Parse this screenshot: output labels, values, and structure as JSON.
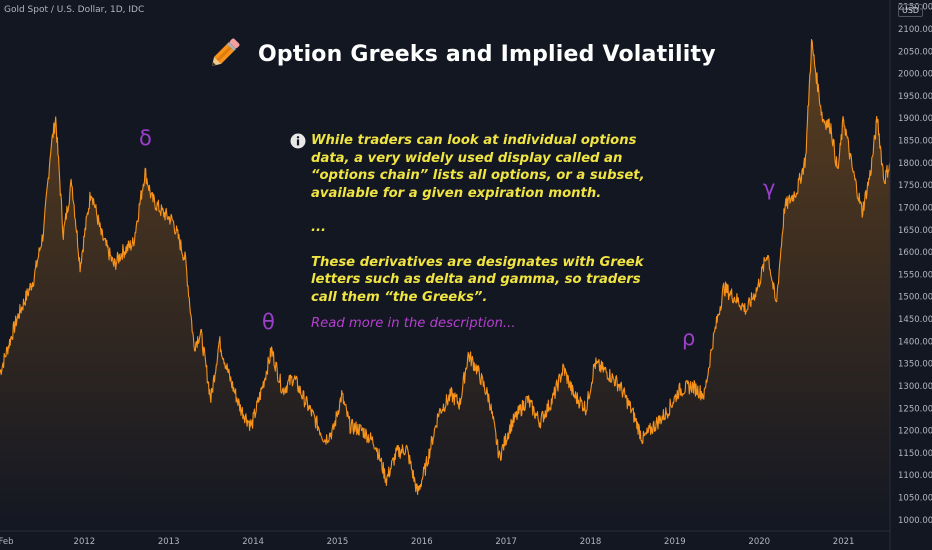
{
  "header": {
    "symbol": "Gold Spot / U.S. Dollar, 1D, IDC",
    "currency": "USD"
  },
  "annotation": {
    "title": "Option Greeks and Implied Volatility",
    "title_icon": "pencil-icon",
    "info_icon": "info-icon",
    "paragraph_1": "While traders can look at individual options data, a very widely used display called an “options chain” lists all options, or a subset, available for a given expiration month.",
    "ellipsis": "...",
    "paragraph_2": "These derivatives are designates with Greek letters such as delta and gamma, so traders call them “the Greeks”.",
    "read_more": "Read more in the description...",
    "text_color": "#f0e442",
    "link_color": "#b63fd0"
  },
  "greek_labels": {
    "delta": "δ",
    "theta": "θ",
    "rho": "ρ",
    "gamma": "γ",
    "color": "#9b3fcb"
  },
  "colors": {
    "background": "#131722",
    "line": "#f7931a",
    "axis_text": "#b2b5be"
  },
  "chart_data": {
    "type": "area",
    "title": "Gold Spot / U.S. Dollar, 1D, IDC",
    "x_ticks": [
      "Feb",
      "2012",
      "2013",
      "2014",
      "2015",
      "2016",
      "2017",
      "2018",
      "2019",
      "2020",
      "2021"
    ],
    "y_ticks": [
      "1000.00",
      "1050.00",
      "1100.00",
      "1150.00",
      "1200.00",
      "1250.00",
      "1300.00",
      "1350.00",
      "1400.00",
      "1450.00",
      "1500.00",
      "1550.00",
      "1600.00",
      "1650.00",
      "1700.00",
      "1750.00",
      "1800.00",
      "1850.00",
      "1900.00",
      "1950.00",
      "2000.00",
      "2050.00",
      "2100.00",
      "2150.00"
    ],
    "ylim": [
      975,
      2165
    ],
    "xlim": [
      2011.0,
      2021.55
    ],
    "grid": false,
    "series": [
      {
        "values_approx_monthly": [
          [
            2011.0,
            1330
          ],
          [
            2011.2,
            1450
          ],
          [
            2011.4,
            1540
          ],
          [
            2011.52,
            1650
          ],
          [
            2011.6,
            1830
          ],
          [
            2011.66,
            1900
          ],
          [
            2011.75,
            1640
          ],
          [
            2011.85,
            1760
          ],
          [
            2011.95,
            1570
          ],
          [
            2012.08,
            1740
          ],
          [
            2012.2,
            1640
          ],
          [
            2012.35,
            1570
          ],
          [
            2012.45,
            1600
          ],
          [
            2012.58,
            1620
          ],
          [
            2012.72,
            1780
          ],
          [
            2012.8,
            1720
          ],
          [
            2012.92,
            1690
          ],
          [
            2013.05,
            1670
          ],
          [
            2013.2,
            1580
          ],
          [
            2013.3,
            1390
          ],
          [
            2013.38,
            1420
          ],
          [
            2013.5,
            1270
          ],
          [
            2013.6,
            1400
          ],
          [
            2013.72,
            1320
          ],
          [
            2013.85,
            1250
          ],
          [
            2013.98,
            1210
          ],
          [
            2014.1,
            1290
          ],
          [
            2014.22,
            1380
          ],
          [
            2014.35,
            1290
          ],
          [
            2014.48,
            1320
          ],
          [
            2014.58,
            1280
          ],
          [
            2014.72,
            1230
          ],
          [
            2014.85,
            1180
          ],
          [
            2014.95,
            1200
          ],
          [
            2015.05,
            1280
          ],
          [
            2015.15,
            1210
          ],
          [
            2015.3,
            1200
          ],
          [
            2015.45,
            1170
          ],
          [
            2015.58,
            1090
          ],
          [
            2015.7,
            1150
          ],
          [
            2015.82,
            1160
          ],
          [
            2015.95,
            1060
          ],
          [
            2016.05,
            1120
          ],
          [
            2016.2,
            1240
          ],
          [
            2016.35,
            1280
          ],
          [
            2016.45,
            1260
          ],
          [
            2016.55,
            1370
          ],
          [
            2016.65,
            1340
          ],
          [
            2016.8,
            1270
          ],
          [
            2016.92,
            1140
          ],
          [
            2017.05,
            1210
          ],
          [
            2017.25,
            1270
          ],
          [
            2017.4,
            1220
          ],
          [
            2017.55,
            1270
          ],
          [
            2017.68,
            1340
          ],
          [
            2017.8,
            1280
          ],
          [
            2017.95,
            1250
          ],
          [
            2018.05,
            1350
          ],
          [
            2018.2,
            1330
          ],
          [
            2018.35,
            1300
          ],
          [
            2018.5,
            1240
          ],
          [
            2018.62,
            1180
          ],
          [
            2018.75,
            1210
          ],
          [
            2018.9,
            1240
          ],
          [
            2019.05,
            1290
          ],
          [
            2019.2,
            1300
          ],
          [
            2019.35,
            1280
          ],
          [
            2019.45,
            1400
          ],
          [
            2019.58,
            1520
          ],
          [
            2019.7,
            1500
          ],
          [
            2019.85,
            1470
          ],
          [
            2019.98,
            1520
          ],
          [
            2020.1,
            1600
          ],
          [
            2020.2,
            1480
          ],
          [
            2020.3,
            1700
          ],
          [
            2020.45,
            1740
          ],
          [
            2020.55,
            1810
          ],
          [
            2020.62,
            2070
          ],
          [
            2020.75,
            1900
          ],
          [
            2020.85,
            1880
          ],
          [
            2020.93,
            1780
          ],
          [
            2021.0,
            1900
          ],
          [
            2021.1,
            1790
          ],
          [
            2021.22,
            1690
          ],
          [
            2021.32,
            1780
          ],
          [
            2021.4,
            1900
          ],
          [
            2021.48,
            1760
          ],
          [
            2021.55,
            1800
          ]
        ]
      }
    ]
  }
}
